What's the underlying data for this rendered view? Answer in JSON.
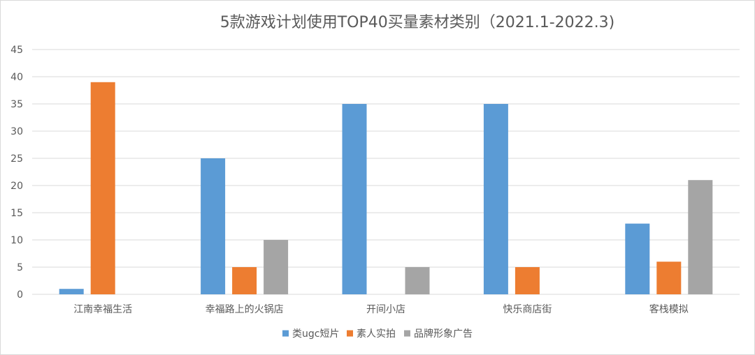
{
  "chart_data": {
    "type": "bar",
    "title": "5款游戏计划使用TOP40买量素材类别（2021.1-2022.3)",
    "xlabel": "",
    "ylabel": "",
    "ylim": [
      0,
      45
    ],
    "yticks": [
      0,
      5,
      10,
      15,
      20,
      25,
      30,
      35,
      40,
      45
    ],
    "grid": true,
    "legend_position": "bottom",
    "categories": [
      "江南幸福生活",
      "幸福路上的火锅店",
      "开间小店",
      "快乐商店街",
      "客栈模拟"
    ],
    "series": [
      {
        "name": "类ugc短片",
        "color": "#5b9bd5",
        "values": [
          1,
          25,
          35,
          35,
          13
        ]
      },
      {
        "name": "素人实拍",
        "color": "#ed7d31",
        "values": [
          39,
          5,
          0,
          5,
          6
        ]
      },
      {
        "name": "品牌形象广告",
        "color": "#a5a5a5",
        "values": [
          0,
          10,
          5,
          0,
          21
        ]
      }
    ]
  }
}
